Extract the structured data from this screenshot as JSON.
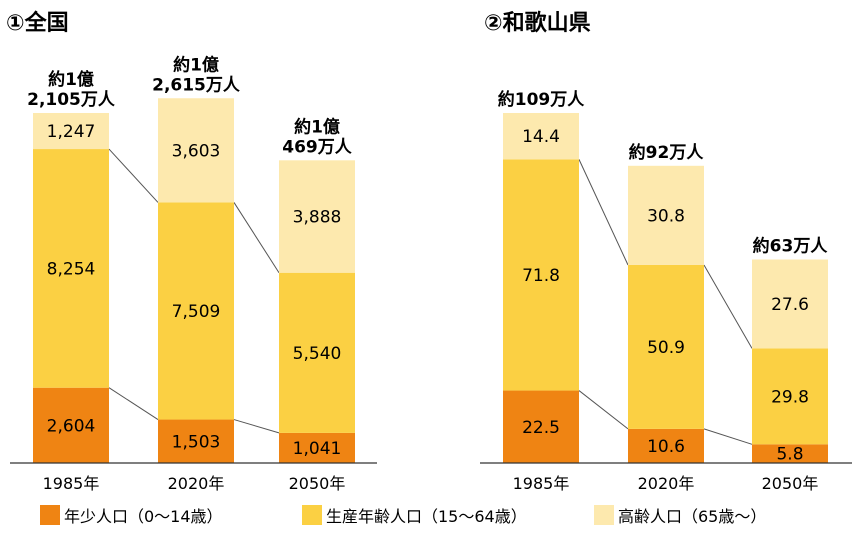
{
  "colors": {
    "youth": "#ef8413",
    "working": "#fbd043",
    "elderly": "#fde9ae",
    "connector": "#555555",
    "axis": "#333333"
  },
  "legend": [
    {
      "key": "youth",
      "label": "年少人口（0～14歳）"
    },
    {
      "key": "working",
      "label": "生産年齢人口（15～64歳）"
    },
    {
      "key": "elderly",
      "label": "高齢人口（65歳～）"
    }
  ],
  "chart_data": [
    {
      "type": "bar",
      "stacked": true,
      "title": "①全国",
      "categories": [
        "1985年",
        "2020年",
        "2050年"
      ],
      "series": [
        {
          "name": "年少人口（0～14歳）",
          "key": "youth",
          "values": [
            2604,
            1503,
            1041
          ],
          "labels": [
            "2,604",
            "1,503",
            "1,041"
          ]
        },
        {
          "name": "生産年齢人口（15～64歳）",
          "key": "working",
          "values": [
            8254,
            7509,
            5540
          ],
          "labels": [
            "8,254",
            "7,509",
            "5,540"
          ]
        },
        {
          "name": "高齢人口（65歳～）",
          "key": "elderly",
          "values": [
            1247,
            3603,
            3888
          ],
          "labels": [
            "1,247",
            "3,603",
            "3,888"
          ]
        }
      ],
      "totals": [
        [
          "約1億",
          "2,105万人"
        ],
        [
          "約1億",
          "2,615万人"
        ],
        [
          "約1億",
          "469万人"
        ]
      ],
      "ylim": [
        0,
        13000
      ]
    },
    {
      "type": "bar",
      "stacked": true,
      "title": "②和歌山県",
      "categories": [
        "1985年",
        "2020年",
        "2050年"
      ],
      "series": [
        {
          "name": "年少人口（0～14歳）",
          "key": "youth",
          "values": [
            22.5,
            10.6,
            5.8
          ],
          "labels": [
            "22.5",
            "10.6",
            "5.8"
          ]
        },
        {
          "name": "生産年齢人口（15～64歳）",
          "key": "working",
          "values": [
            71.8,
            50.9,
            29.8
          ],
          "labels": [
            "71.8",
            "50.9",
            "29.8"
          ]
        },
        {
          "name": "高齢人口（65歳～）",
          "key": "elderly",
          "values": [
            14.4,
            30.8,
            27.6
          ],
          "labels": [
            "14.4",
            "30.8",
            "27.6"
          ]
        }
      ],
      "totals": [
        [
          "約109万人"
        ],
        [
          "約92万人"
        ],
        [
          "約63万人"
        ]
      ],
      "ylim": [
        0,
        125
      ]
    }
  ]
}
